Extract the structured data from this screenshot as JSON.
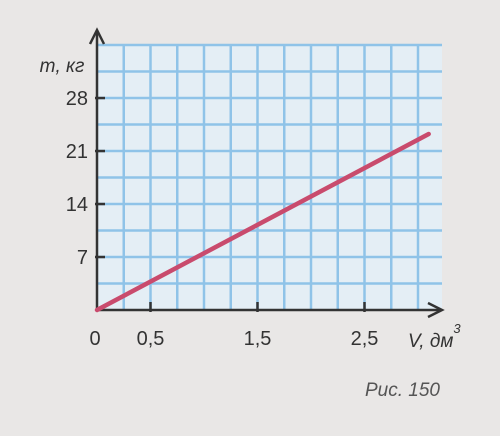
{
  "colors": {
    "background": "#e9e7e6",
    "plot_background": "#e4eef5",
    "grid": "#8fc3e8",
    "axis": "#333333",
    "line": "#c94b6d"
  },
  "caption": "Рис. 150",
  "chart_data": {
    "type": "line",
    "title": "",
    "xlabel": "V, дм",
    "xlabel_superscript": "3",
    "ylabel": "m, кг",
    "x_tick_labels": [
      "0",
      "0,5",
      "1,5",
      "2,5"
    ],
    "x_ticks": [
      0,
      0.5,
      1.5,
      2.5
    ],
    "y_tick_labels": [
      "7",
      "14",
      "21",
      "28"
    ],
    "y_ticks": [
      7,
      14,
      21,
      28
    ],
    "xlim": [
      0,
      3.2
    ],
    "ylim": [
      0,
      31
    ],
    "grid": true,
    "series": [
      {
        "x": [
          0,
          3.1
        ],
        "y": [
          0,
          23.25
        ],
        "color": "#c94b6d"
      }
    ]
  }
}
